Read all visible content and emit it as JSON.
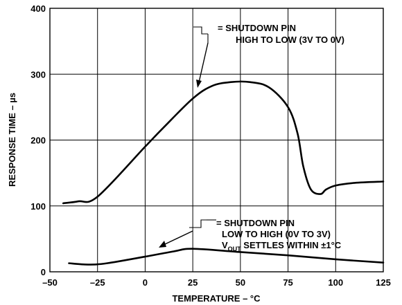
{
  "chart_data": {
    "type": "line",
    "xlabel": "TEMPERATURE – °C",
    "ylabel": "RESPONSE TIME – µs",
    "xlim": [
      -50,
      125
    ],
    "ylim": [
      0,
      400
    ],
    "x_ticks": [
      "–50",
      "–25",
      "0",
      "25",
      "50",
      "75",
      "100",
      "125"
    ],
    "y_ticks": [
      "0",
      "100",
      "200",
      "300",
      "400"
    ],
    "grid": true,
    "series": [
      {
        "points": [
          [
            -43,
            104
          ],
          [
            -35,
            107
          ],
          [
            -25,
            114
          ],
          [
            0,
            190
          ],
          [
            10,
            220
          ],
          [
            25,
            263
          ],
          [
            35,
            282
          ],
          [
            45,
            288
          ],
          [
            55,
            288
          ],
          [
            65,
            280
          ],
          [
            75,
            250
          ],
          [
            80,
            210
          ],
          [
            83,
            160
          ],
          [
            87,
            125
          ],
          [
            92,
            118
          ],
          [
            95,
            125
          ],
          [
            100,
            131
          ],
          [
            110,
            135
          ],
          [
            125,
            137
          ]
        ]
      },
      {
        "points": [
          [
            -40,
            13
          ],
          [
            -30,
            11
          ],
          [
            -20,
            13
          ],
          [
            0,
            23
          ],
          [
            15,
            31
          ],
          [
            25,
            35
          ],
          [
            50,
            30
          ],
          [
            75,
            25
          ],
          [
            100,
            19
          ],
          [
            125,
            14
          ]
        ]
      }
    ],
    "annotations": [
      {
        "lines": [
          "= SHUTDOWN PIN",
          "HIGH TO LOW (3V TO 0V)"
        ]
      },
      {
        "lines": [
          "= SHUTDOWN PIN",
          "LOW TO HIGH (0V TO 3V)",
          "V",
          "OUT",
          " SETTLES WITHIN ±1°C"
        ]
      }
    ]
  }
}
